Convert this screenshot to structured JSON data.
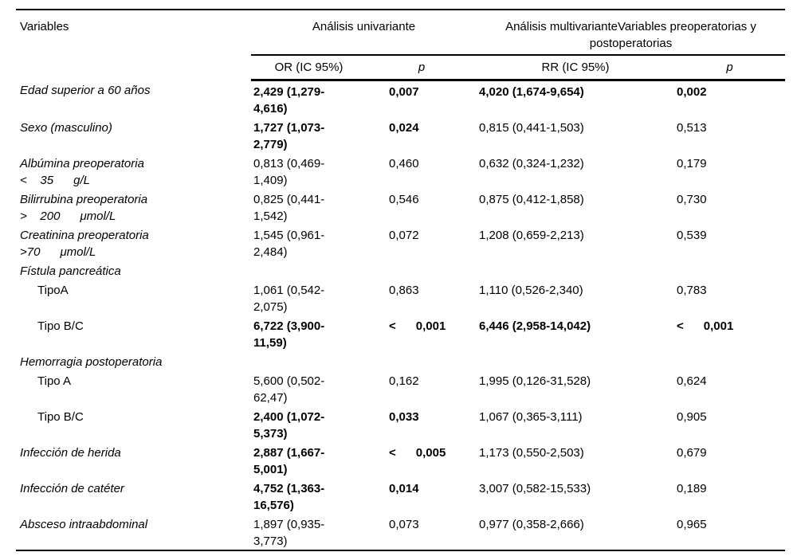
{
  "table": {
    "col_headers": {
      "variables": "Variables",
      "group_univariante": "Análisis univariante",
      "group_multivariante": "Análisis multivarianteVariables preoperatorias y postoperatorias",
      "or": "OR (IC 95%)",
      "p1": "p",
      "rr": "RR (IC 95%)",
      "p2": "p"
    },
    "rows": [
      {
        "label": "Edad superior a 60 años",
        "italic": true,
        "indent": false,
        "section": false,
        "or": "2,429 (1,279-\n4,616)",
        "or_bold": true,
        "p1": "0,007",
        "p1_bold": true,
        "rr": "4,020 (1,674-9,654)",
        "rr_bold": true,
        "p2": "0,002",
        "p2_bold": true
      },
      {
        "label": "Sexo (masculino)",
        "italic": true,
        "indent": false,
        "section": false,
        "or": "1,727 (1,073-\n2,779)",
        "or_bold": true,
        "p1": "0,024",
        "p1_bold": true,
        "rr": "0,815 (0,441-1,503)",
        "rr_bold": false,
        "p2": "0,513",
        "p2_bold": false
      },
      {
        "label": "Albúmina preoperatoria\n<    35      g/L",
        "italic": true,
        "indent": false,
        "section": false,
        "or": "0,813 (0,469-\n1,409)",
        "or_bold": false,
        "p1": "0,460",
        "p1_bold": false,
        "rr": "0,632 (0,324-1,232)",
        "rr_bold": false,
        "p2": "0,179",
        "p2_bold": false
      },
      {
        "label": "Bilirrubina preoperatoria\n>    200      μmol/L",
        "italic": true,
        "indent": false,
        "section": false,
        "or": "0,825 (0,441-\n1,542)",
        "or_bold": false,
        "p1": "0,546",
        "p1_bold": false,
        "rr": "0,875 (0,412-1,858)",
        "rr_bold": false,
        "p2": "0,730",
        "p2_bold": false
      },
      {
        "label": "Creatinina preoperatoria\n>70      μmol/L",
        "italic": true,
        "indent": false,
        "section": false,
        "or": "1,545 (0,961-\n2,484)",
        "or_bold": false,
        "p1": "0,072",
        "p1_bold": false,
        "rr": "1,208 (0,659-2,213)",
        "rr_bold": false,
        "p2": "0,539",
        "p2_bold": false
      },
      {
        "label": "Fístula pancreática",
        "italic": true,
        "indent": false,
        "section": true,
        "or": "",
        "or_bold": false,
        "p1": "",
        "p1_bold": false,
        "rr": "",
        "rr_bold": false,
        "p2": "",
        "p2_bold": false
      },
      {
        "label": "TipoA",
        "italic": false,
        "indent": true,
        "section": false,
        "or": "1,061 (0,542-\n2,075)",
        "or_bold": false,
        "p1": "0,863",
        "p1_bold": false,
        "rr": "1,110 (0,526-2,340)",
        "rr_bold": false,
        "p2": "0,783",
        "p2_bold": false
      },
      {
        "label": "Tipo B/C",
        "italic": false,
        "indent": true,
        "section": false,
        "or": "6,722 (3,900-\n11,59)",
        "or_bold": true,
        "p1": "<      0,001",
        "p1_bold": true,
        "rr": "6,446 (2,958-14,042)",
        "rr_bold": true,
        "p2": "<      0,001",
        "p2_bold": true
      },
      {
        "label": "Hemorragia postoperatoria",
        "italic": true,
        "indent": false,
        "section": true,
        "or": "",
        "or_bold": false,
        "p1": "",
        "p1_bold": false,
        "rr": "",
        "rr_bold": false,
        "p2": "",
        "p2_bold": false
      },
      {
        "label": "Tipo A",
        "italic": false,
        "indent": true,
        "section": false,
        "or": "5,600 (0,502-\n62,47)",
        "or_bold": false,
        "p1": "0,162",
        "p1_bold": false,
        "rr": "1,995 (0,126-31,528)",
        "rr_bold": false,
        "p2": "0,624",
        "p2_bold": false
      },
      {
        "label": "Tipo B/C",
        "italic": false,
        "indent": true,
        "section": false,
        "or": "2,400 (1,072-\n5,373)",
        "or_bold": true,
        "p1": "0,033",
        "p1_bold": true,
        "rr": "1,067 (0,365-3,111)",
        "rr_bold": false,
        "p2": "0,905",
        "p2_bold": false
      },
      {
        "label": "Infección de herida",
        "italic": true,
        "indent": false,
        "section": false,
        "or": "2,887 (1,667-\n5,001)",
        "or_bold": true,
        "p1": "<      0,005",
        "p1_bold": true,
        "rr": "1,173 (0,550-2,503)",
        "rr_bold": false,
        "p2": "0,679",
        "p2_bold": false
      },
      {
        "label": "Infección de catéter",
        "italic": true,
        "indent": false,
        "section": false,
        "or": "4,752 (1,363-\n16,576)",
        "or_bold": true,
        "p1": "0,014",
        "p1_bold": true,
        "rr": "3,007 (0,582-15,533)",
        "rr_bold": false,
        "p2": "0,189",
        "p2_bold": false
      },
      {
        "label": "Absceso intraabdominal",
        "italic": true,
        "indent": false,
        "section": false,
        "or": "1,897 (0,935-\n3,773)",
        "or_bold": false,
        "p1": "0,073",
        "p1_bold": false,
        "rr": "0,977 (0,358-2,666)",
        "rr_bold": false,
        "p2": "0,965",
        "p2_bold": false
      }
    ]
  }
}
